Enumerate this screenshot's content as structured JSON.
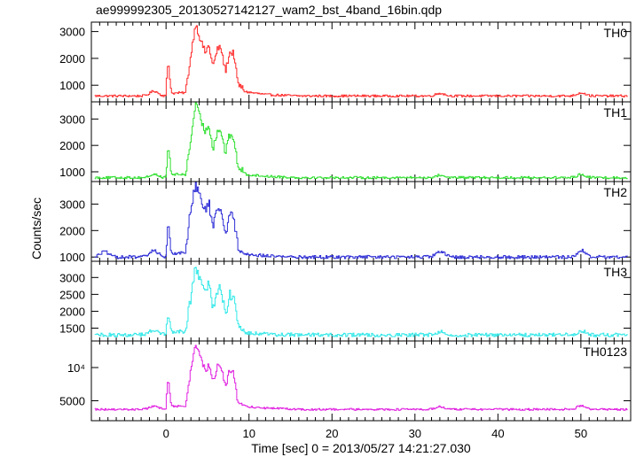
{
  "figure": {
    "title": "ae999992305_20130527142127_wam2_bst_4band_16bin.qdp",
    "xlabel": "Time [sec] 0 = 2013/05/27 14:21:27.030",
    "ylabel": "Counts/sec"
  },
  "chart_data": [
    {
      "type": "line",
      "panel": "TH0",
      "color": "#ff2b2b",
      "x_range": [
        -9,
        56
      ],
      "ylim": [
        380,
        3350
      ],
      "y_ticks": [
        1000,
        2000,
        3000
      ],
      "y_tick_labels": [
        "1000",
        "2000",
        "3000"
      ],
      "x_ticks": [
        0,
        10,
        20,
        30,
        40,
        50
      ],
      "x_tick_labels": [
        "0",
        "10",
        "20",
        "30",
        "40",
        "50"
      ],
      "baseline": 600,
      "noise": 40,
      "bumps": [
        [
          -1.5,
          780
        ],
        [
          33,
          700
        ],
        [
          50,
          720
        ]
      ],
      "keypoints": [
        [
          -0.1,
          600
        ],
        [
          0.2,
          1950
        ],
        [
          0.6,
          700
        ],
        [
          2.3,
          720
        ],
        [
          2.8,
          1800
        ],
        [
          3.5,
          3300
        ],
        [
          4.2,
          2600
        ],
        [
          4.7,
          2200
        ],
        [
          5.1,
          2500
        ],
        [
          5.6,
          1700
        ],
        [
          6.2,
          2400
        ],
        [
          6.6,
          2350
        ],
        [
          7.1,
          1500
        ],
        [
          7.6,
          2200
        ],
        [
          8.1,
          2200
        ],
        [
          8.6,
          1050
        ],
        [
          9.6,
          750
        ],
        [
          12,
          650
        ],
        [
          16,
          600
        ]
      ]
    },
    {
      "type": "line",
      "panel": "TH1",
      "color": "#2fe02f",
      "x_range": [
        -9,
        56
      ],
      "ylim": [
        630,
        3650
      ],
      "y_ticks": [
        1000,
        2000,
        3000
      ],
      "y_tick_labels": [
        "1000",
        "2000",
        "3000"
      ],
      "x_ticks": [
        0,
        10,
        20,
        30,
        40,
        50
      ],
      "x_tick_labels": [
        "0",
        "10",
        "20",
        "30",
        "40",
        "50"
      ],
      "baseline": 780,
      "noise": 45,
      "bumps": [
        [
          -1.5,
          900
        ],
        [
          33,
          870
        ],
        [
          50,
          900
        ]
      ],
      "keypoints": [
        [
          -0.1,
          780
        ],
        [
          0.2,
          1950
        ],
        [
          0.6,
          900
        ],
        [
          2.3,
          900
        ],
        [
          2.8,
          1900
        ],
        [
          3.5,
          3600
        ],
        [
          4.2,
          2900
        ],
        [
          4.7,
          2500
        ],
        [
          5.1,
          2800
        ],
        [
          5.6,
          1900
        ],
        [
          6.2,
          2600
        ],
        [
          6.6,
          2500
        ],
        [
          7.1,
          1700
        ],
        [
          7.6,
          2400
        ],
        [
          8.1,
          2300
        ],
        [
          8.6,
          1200
        ],
        [
          9.6,
          900
        ],
        [
          12,
          830
        ],
        [
          16,
          780
        ]
      ]
    },
    {
      "type": "line",
      "panel": "TH2",
      "color": "#2d2dd6",
      "x_range": [
        -9,
        56
      ],
      "ylim": [
        840,
        3850
      ],
      "y_ticks": [
        1000,
        2000,
        3000
      ],
      "y_tick_labels": [
        "1000",
        "2000",
        "3000"
      ],
      "x_ticks": [
        0,
        10,
        20,
        30,
        40,
        50
      ],
      "x_tick_labels": [
        "0",
        "10",
        "20",
        "30",
        "40",
        "50"
      ],
      "baseline": 1000,
      "noise": 60,
      "bumps": [
        [
          -7.5,
          1200
        ],
        [
          -1.5,
          1250
        ],
        [
          33,
          1200
        ],
        [
          50,
          1250
        ]
      ],
      "keypoints": [
        [
          -0.1,
          1000
        ],
        [
          0.2,
          2200
        ],
        [
          0.6,
          1150
        ],
        [
          2.3,
          1150
        ],
        [
          2.8,
          2600
        ],
        [
          3.5,
          3800
        ],
        [
          4.2,
          3100
        ],
        [
          4.7,
          2700
        ],
        [
          5.1,
          3100
        ],
        [
          5.6,
          2100
        ],
        [
          6.2,
          2900
        ],
        [
          6.6,
          2800
        ],
        [
          7.1,
          1900
        ],
        [
          7.6,
          2600
        ],
        [
          8.1,
          2500
        ],
        [
          8.6,
          1400
        ],
        [
          9.6,
          1100
        ],
        [
          12,
          1050
        ],
        [
          16,
          1000
        ]
      ]
    },
    {
      "type": "line",
      "panel": "TH3",
      "color": "#33e8e8",
      "x_range": [
        -9,
        56
      ],
      "ylim": [
        1120,
        3480
      ],
      "y_ticks": [
        1500,
        2000,
        2500,
        3000
      ],
      "y_tick_labels": [
        "1500",
        "2000",
        "2500",
        "3000"
      ],
      "x_ticks": [
        0,
        10,
        20,
        30,
        40,
        50
      ],
      "x_tick_labels": [
        "0",
        "10",
        "20",
        "30",
        "40",
        "50"
      ],
      "baseline": 1300,
      "noise": 55,
      "bumps": [
        [
          -1.5,
          1450
        ],
        [
          33,
          1400
        ],
        [
          50,
          1420
        ]
      ],
      "keypoints": [
        [
          -0.1,
          1300
        ],
        [
          0.2,
          2050
        ],
        [
          0.6,
          1400
        ],
        [
          2.3,
          1400
        ],
        [
          2.8,
          2200
        ],
        [
          3.5,
          3350
        ],
        [
          4.2,
          2800
        ],
        [
          4.7,
          2500
        ],
        [
          5.1,
          2800
        ],
        [
          5.6,
          2100
        ],
        [
          6.2,
          2700
        ],
        [
          6.6,
          2650
        ],
        [
          7.1,
          1900
        ],
        [
          7.6,
          2500
        ],
        [
          8.1,
          2400
        ],
        [
          8.6,
          1600
        ],
        [
          9.6,
          1350
        ],
        [
          12,
          1320
        ],
        [
          16,
          1300
        ]
      ]
    },
    {
      "type": "line",
      "panel": "TH0123",
      "color": "#e020e0",
      "x_range": [
        -9,
        56
      ],
      "ylim": [
        2000,
        14000
      ],
      "y_ticks": [
        5000,
        10000
      ],
      "y_tick_labels": [
        "5000",
        "10⁴"
      ],
      "x_ticks": [
        0,
        10,
        20,
        30,
        40,
        50
      ],
      "x_tick_labels": [
        "0",
        "10",
        "20",
        "30",
        "40",
        "50"
      ],
      "baseline": 3700,
      "noise": 150,
      "bumps": [
        [
          -1.5,
          4200
        ],
        [
          33,
          4100
        ],
        [
          50,
          4300
        ]
      ],
      "keypoints": [
        [
          -0.1,
          3700
        ],
        [
          0.2,
          8700
        ],
        [
          0.6,
          4200
        ],
        [
          2.3,
          4200
        ],
        [
          2.8,
          8500
        ],
        [
          3.5,
          13700
        ],
        [
          4.2,
          11000
        ],
        [
          4.7,
          9500
        ],
        [
          5.1,
          10500
        ],
        [
          5.6,
          7700
        ],
        [
          6.2,
          10500
        ],
        [
          6.6,
          10000
        ],
        [
          7.1,
          7000
        ],
        [
          7.6,
          9500
        ],
        [
          8.1,
          9200
        ],
        [
          8.6,
          4800
        ],
        [
          9.6,
          4100
        ],
        [
          12,
          3900
        ],
        [
          16,
          3700
        ]
      ]
    }
  ]
}
